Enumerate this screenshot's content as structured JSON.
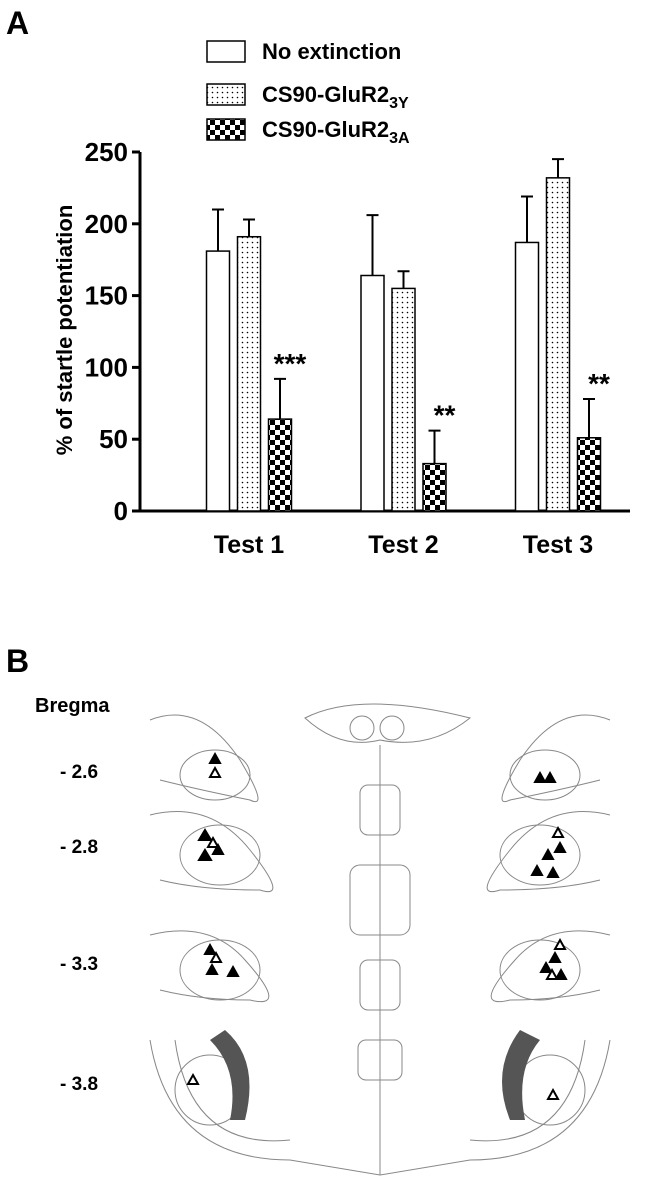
{
  "panel_labels": [
    "A",
    "B"
  ],
  "chart_data": {
    "type": "bar",
    "ylabel": "% of startle potentiation",
    "categories": [
      "Test 1",
      "Test 2",
      "Test 3"
    ],
    "series": [
      {
        "name": "No extinction",
        "color": "#ffffff",
        "pattern": "none",
        "values": [
          181,
          164,
          187
        ],
        "errors": [
          29,
          42,
          32
        ]
      },
      {
        "name": "CS90-GluR2",
        "subscript": "3Y",
        "color": "#ffffff",
        "pattern": "dots",
        "values": [
          191,
          155,
          232
        ],
        "errors": [
          12,
          12,
          13
        ]
      },
      {
        "name": "CS90-GluR2",
        "subscript": "3A",
        "color": "#ffffff",
        "pattern": "checker",
        "values": [
          64,
          33,
          51
        ],
        "errors": [
          28,
          23,
          27
        ],
        "annotations": [
          "***",
          "**",
          "**"
        ]
      }
    ],
    "ylim": [
      0,
      250
    ],
    "yticks": [
      0,
      50,
      100,
      150,
      200,
      250
    ]
  },
  "panel_b": {
    "title": "Bregma",
    "levels": [
      "- 2.6",
      "- 2.8",
      "- 3.3",
      "- 3.8"
    ]
  }
}
